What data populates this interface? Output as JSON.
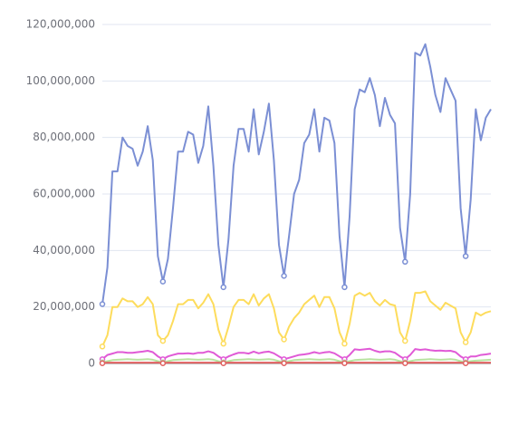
{
  "chart_data": {
    "type": "line",
    "ylim": [
      0,
      120000000.0
    ],
    "yticks": [
      0,
      {
        "value": 20000000.0,
        "label": "20,000,000"
      },
      {
        "value": 40000000.0,
        "label": "40,000,000"
      },
      {
        "value": 60000000.0,
        "label": "60,000,000"
      },
      {
        "value": 80000000.0,
        "label": "80,000,000"
      },
      {
        "value": 100000000.0,
        "label": "100,000,000"
      },
      {
        "value": 120000000.0,
        "label": "120,000,000"
      }
    ],
    "grid": true,
    "series": [
      {
        "color": "#7b8fd4",
        "values": [
          21000000.0,
          34000000.0,
          68000000.0,
          68000000.0,
          80000000.0,
          77000000.0,
          76000000.0,
          70000000.0,
          75000000.0,
          84000000.0,
          72000000.0,
          38000000.0,
          29000000.0,
          37000000.0,
          55000000.0,
          75000000.0,
          75000000.0,
          82000000.0,
          81000000.0,
          71000000.0,
          77000000.0,
          91000000.0,
          70000000.0,
          42000000.0,
          27000000.0,
          44000000.0,
          70000000.0,
          83000000.0,
          83000000.0,
          75000000.0,
          90000000.0,
          74000000.0,
          82000000.0,
          92000000.0,
          72000000.0,
          42000000.0,
          31000000.0,
          45000000.0,
          60000000.0,
          65000000.0,
          78000000.0,
          81000000.0,
          90000000.0,
          75000000.0,
          87000000.0,
          86000000.0,
          78000000.0,
          45000000.0,
          27000000.0,
          52000000.0,
          90000000.0,
          97000000.0,
          96000000.0,
          101000000.0,
          95000000.0,
          84000000.0,
          94000000.0,
          88000000.0,
          85000000.0,
          48000000.0,
          36000000.0,
          60000000.0,
          110000000.0,
          109000000.0,
          113000000.0,
          105000000.0,
          95000000.0,
          89000000.0,
          101000000.0,
          97000000.0,
          93000000.0,
          55000000.0,
          38000000.0,
          58000000.0,
          90000000.0,
          79000000.0,
          87000000.0,
          90000000.0
        ]
      },
      {
        "color": "#fddc5c",
        "values": [
          6000000.0,
          10000000.0,
          20000000.0,
          20000000.0,
          23000000.0,
          22000000.0,
          22000000.0,
          20000000.0,
          21000000.0,
          23500000.0,
          21000000.0,
          10000000.0,
          8000000.0,
          10000000.0,
          15000000.0,
          21000000.0,
          21000000.0,
          22500000.0,
          22500000.0,
          19500000.0,
          21500000.0,
          24500000.0,
          21000000.0,
          12000000.0,
          7000000.0,
          13000000.0,
          20000000.0,
          22500000.0,
          22500000.0,
          21000000.0,
          24500000.0,
          20500000.0,
          23000000.0,
          24500000.0,
          19500000.0,
          11000000.0,
          8500000.0,
          13000000.0,
          16000000.0,
          18000000.0,
          21000000.0,
          22500000.0,
          24000000.0,
          20000000.0,
          23500000.0,
          23500000.0,
          19500000.0,
          11000000.0,
          7000000.0,
          14000000.0,
          24000000.0,
          25000000.0,
          24000000.0,
          25000000.0,
          22000000.0,
          20500000.0,
          22500000.0,
          21000000.0,
          20500000.0,
          11000000.0,
          8000000.0,
          15000000.0,
          25000000.0,
          25000000.0,
          25500000.0,
          22000000.0,
          20500000.0,
          19000000.0,
          21500000.0,
          20500000.0,
          19500000.0,
          11000000.0,
          7500000.0,
          11000000.0,
          18000000.0,
          17000000.0,
          18000000.0,
          18500000.0
        ]
      },
      {
        "color": "#e05ad6",
        "values": [
          1500000.0,
          3000000.0,
          3500000.0,
          4000000.0,
          4000000.0,
          3800000.0,
          3800000.0,
          4000000.0,
          4200000.0,
          4500000.0,
          4000000.0,
          2500000.0,
          1500000.0,
          2500000.0,
          3000000.0,
          3500000.0,
          3500000.0,
          3600000.0,
          3400000.0,
          3800000.0,
          3800000.0,
          4300000.0,
          3800000.0,
          2500000.0,
          1500000.0,
          2500000.0,
          3200000.0,
          3800000.0,
          3800000.0,
          3500000.0,
          4200000.0,
          3600000.0,
          4000000.0,
          4200000.0,
          3600000.0,
          2500000.0,
          1500000.0,
          2000000.0,
          2500000.0,
          3000000.0,
          3200000.0,
          3500000.0,
          4000000.0,
          3600000.0,
          3900000.0,
          4100000.0,
          3600000.0,
          2500000.0,
          1500000.0,
          3000000.0,
          5000000.0,
          4800000.0,
          5000000.0,
          5200000.0,
          4500000.0,
          4000000.0,
          4300000.0,
          4300000.0,
          3800000.0,
          2500000.0,
          1500000.0,
          3000000.0,
          5100000.0,
          4800000.0,
          5000000.0,
          4700000.0,
          4500000.0,
          4600000.0,
          4400000.0,
          4500000.0,
          4000000.0,
          2500000.0,
          1500000.0,
          2500000.0,
          2500000.0,
          3000000.0,
          3200000.0,
          3500000.0
        ]
      },
      {
        "color": "#b7e3a0",
        "values": [
          400000.0,
          800000.0,
          1200000.0,
          1300000.0,
          1400000.0,
          1500000.0,
          1400000.0,
          1300000.0,
          1400000.0,
          1500000.0,
          1300000.0,
          800000.0,
          400000.0,
          800000.0,
          1200000.0,
          1300000.0,
          1400000.0,
          1500000.0,
          1400000.0,
          1300000.0,
          1400000.0,
          1500000.0,
          1300000.0,
          800000.0,
          400000.0,
          800000.0,
          1200000.0,
          1300000.0,
          1400000.0,
          1500000.0,
          1400000.0,
          1300000.0,
          1400000.0,
          1500000.0,
          1300000.0,
          800000.0,
          400000.0,
          800000.0,
          1200000.0,
          1300000.0,
          1400000.0,
          1500000.0,
          1400000.0,
          1300000.0,
          1400000.0,
          1500000.0,
          1300000.0,
          800000.0,
          400000.0,
          800000.0,
          1200000.0,
          1300000.0,
          1400000.0,
          1500000.0,
          1400000.0,
          1300000.0,
          1400000.0,
          1500000.0,
          1300000.0,
          800000.0,
          400000.0,
          800000.0,
          1200000.0,
          1300000.0,
          1400000.0,
          1500000.0,
          1400000.0,
          1300000.0,
          1400000.0,
          1500000.0,
          1300000.0,
          800000.0,
          400000.0,
          800000.0,
          1000000.0,
          1100000.0,
          1200000.0,
          1300000.0
        ]
      },
      {
        "color": "#e06060",
        "values": [
          100000.0,
          300000.0,
          300000.0,
          300000.0,
          300000.0,
          300000.0,
          300000.0,
          300000.0,
          300000.0,
          300000.0,
          300000.0,
          300000.0,
          100000.0,
          300000.0,
          300000.0,
          300000.0,
          300000.0,
          300000.0,
          300000.0,
          300000.0,
          300000.0,
          300000.0,
          300000.0,
          300000.0,
          100000.0,
          300000.0,
          300000.0,
          300000.0,
          300000.0,
          300000.0,
          300000.0,
          300000.0,
          300000.0,
          300000.0,
          300000.0,
          300000.0,
          100000.0,
          300000.0,
          300000.0,
          300000.0,
          300000.0,
          300000.0,
          300000.0,
          300000.0,
          300000.0,
          300000.0,
          300000.0,
          300000.0,
          100000.0,
          300000.0,
          300000.0,
          300000.0,
          300000.0,
          300000.0,
          300000.0,
          300000.0,
          300000.0,
          300000.0,
          300000.0,
          300000.0,
          100000.0,
          300000.0,
          300000.0,
          300000.0,
          300000.0,
          300000.0,
          300000.0,
          300000.0,
          300000.0,
          300000.0,
          300000.0,
          300000.0,
          100000.0,
          300000.0,
          300000.0,
          300000.0,
          300000.0,
          300000.0
        ]
      }
    ]
  }
}
